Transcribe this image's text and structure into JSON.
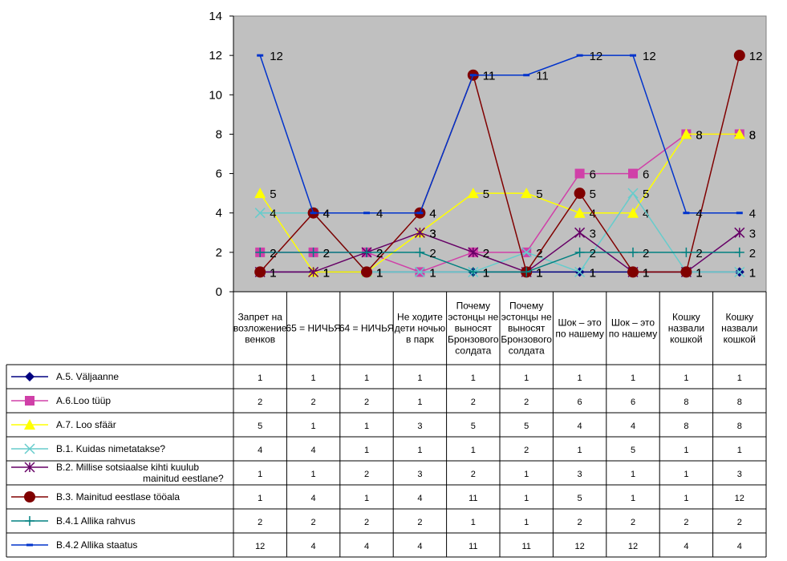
{
  "chart_data": {
    "type": "line",
    "ylim": [
      0,
      14
    ],
    "yticks": [
      0,
      2,
      4,
      6,
      8,
      10,
      12,
      14
    ],
    "grid": false,
    "plot_background": "#c0c0c0",
    "legend": "data-table-below",
    "categories": [
      "Запрет на возложение венков",
      "65 = НИЧЬЯ",
      "64 = НИЧЬЯ",
      "Не ходите дети ночью в парк",
      "Почему эстонцы не выносят Бронзового солдата",
      "Почему эстонцы не выносят Бронзового солдата",
      "Шок – это по нашему",
      "Шок – это по нашему",
      "Кошку назвали кошкой",
      "Кошку назвали кошкой"
    ],
    "series": [
      {
        "name": "A.5. Väljaanne",
        "color": "#000080",
        "marker": "diamond",
        "values": [
          1,
          1,
          1,
          1,
          1,
          1,
          1,
          1,
          1,
          1
        ]
      },
      {
        "name": "A.6.Loo tüüp",
        "color": "#d040a8",
        "marker": "square",
        "values": [
          2,
          2,
          2,
          1,
          2,
          2,
          6,
          6,
          8,
          8
        ]
      },
      {
        "name": "A.7. Loo sfäär",
        "color": "#ffff00",
        "marker": "triangle",
        "values": [
          5,
          1,
          1,
          3,
          5,
          5,
          4,
          4,
          8,
          8
        ]
      },
      {
        "name": "B.1. Kuidas nimetatakse?",
        "color": "#66cccc",
        "marker": "x",
        "values": [
          4,
          4,
          1,
          1,
          1,
          2,
          1,
          5,
          1,
          1
        ]
      },
      {
        "name": "B.2. Millise sotsiaalse kihti kuulub mainitud eestlane?",
        "color": "#660066",
        "marker": "star",
        "values": [
          1,
          1,
          2,
          3,
          2,
          1,
          3,
          1,
          1,
          3
        ]
      },
      {
        "name": "B.3. Mainitud eestlase tööala",
        "color": "#800000",
        "marker": "circle",
        "values": [
          1,
          4,
          1,
          4,
          11,
          1,
          5,
          1,
          1,
          12
        ]
      },
      {
        "name": "B.4.1 Allika rahvus",
        "color": "#008080",
        "marker": "plus",
        "values": [
          2,
          2,
          2,
          2,
          1,
          1,
          2,
          2,
          2,
          2
        ]
      },
      {
        "name": "B.4.2 Allika staatus",
        "color": "#0033cc",
        "marker": "dash",
        "values": [
          12,
          4,
          4,
          4,
          11,
          11,
          12,
          12,
          4,
          4
        ]
      }
    ]
  }
}
